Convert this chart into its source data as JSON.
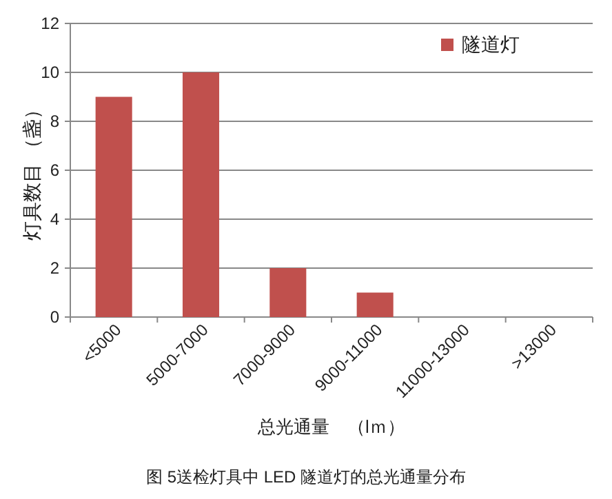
{
  "chart_data": {
    "type": "bar",
    "categories": [
      "<5000",
      "5000-7000",
      "7000-9000",
      "9000-11000",
      "11000-13000",
      ">13000"
    ],
    "series": [
      {
        "name": "隧道灯",
        "color": "#c0504d",
        "values": [
          9,
          10,
          2,
          1,
          0,
          0
        ]
      }
    ],
    "ylim": [
      0,
      12
    ],
    "yticks": [
      0,
      2,
      4,
      6,
      8,
      10,
      12
    ],
    "grid": "y",
    "legend": "top right",
    "ylabel": "灯具数目 （盏）",
    "xlabel": "总光通量　（lｍ）",
    "annotations": [
      "图 5送检灯具中 LED 隧道灯的总光通量分布"
    ]
  }
}
